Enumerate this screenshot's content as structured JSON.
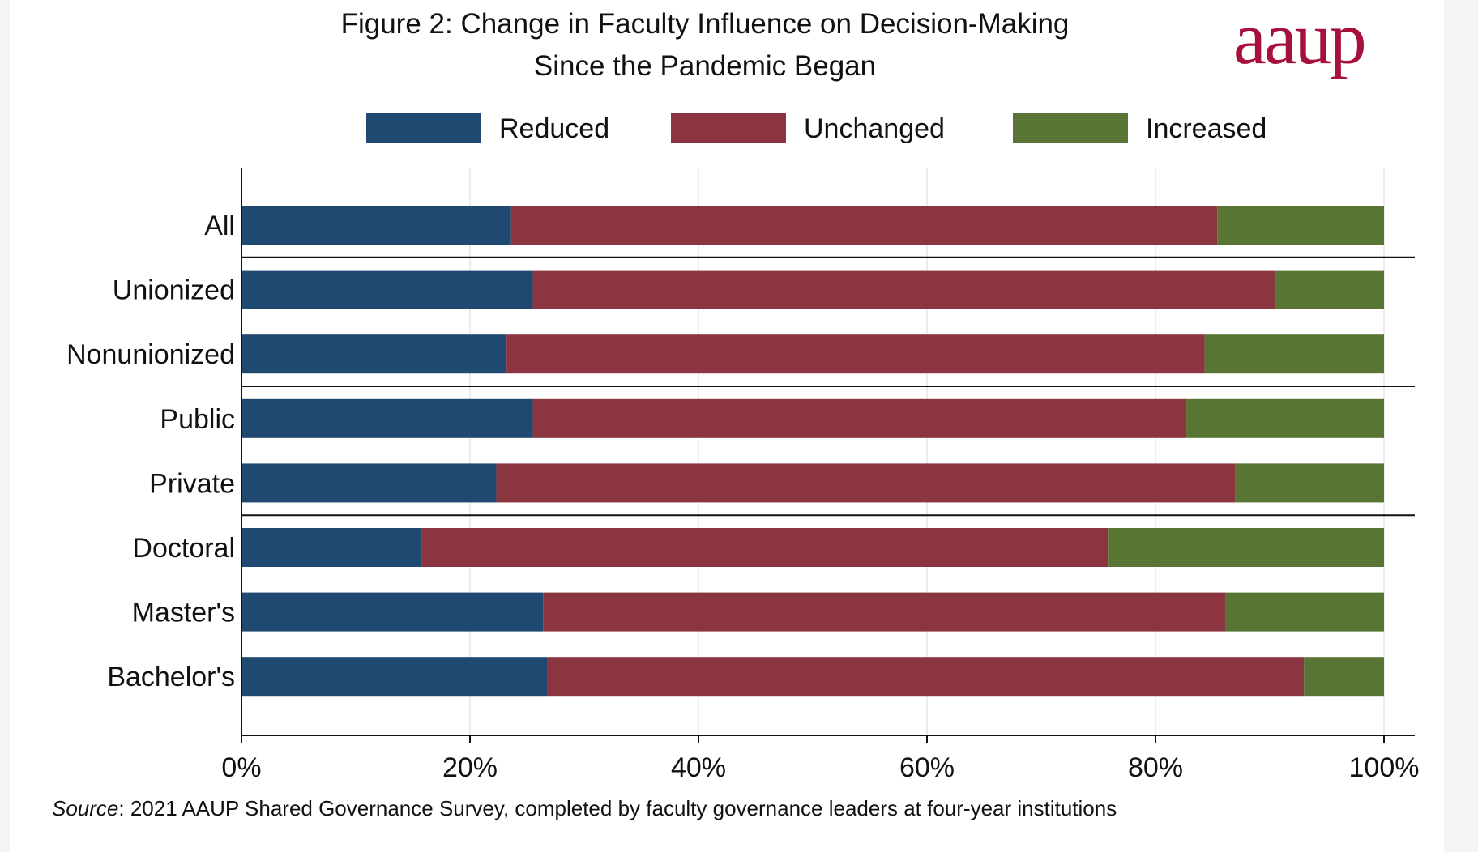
{
  "logo_text": "aaup",
  "source_note": {
    "label": "Source",
    "text": ": 2021 AAUP Shared Governance Survey, completed by faculty governance leaders at four-year institutions"
  },
  "chart_data": {
    "type": "bar",
    "orientation": "horizontal",
    "stacked": true,
    "title": "Figure 2: Change in Faculty Influence on Decision-Making",
    "subtitle": "Since the Pandemic Began",
    "categories": [
      "All",
      "Unionized",
      "Nonunionized",
      "Public",
      "Private",
      "Doctoral",
      "Master's",
      "Bachelor's"
    ],
    "series": [
      {
        "name": "Reduced",
        "color": "#1f4970",
        "values": [
          23.6,
          25.5,
          23.2,
          25.5,
          22.3,
          15.8,
          26.4,
          26.8
        ]
      },
      {
        "name": "Unchanged",
        "color": "#8b3540",
        "values": [
          61.8,
          65.0,
          61.1,
          57.2,
          64.7,
          60.1,
          59.7,
          66.2
        ]
      },
      {
        "name": "Increased",
        "color": "#587533",
        "values": [
          14.6,
          9.5,
          15.7,
          17.3,
          13.0,
          24.1,
          13.9,
          7.0
        ]
      }
    ],
    "group_separators_after": [
      "All",
      "Nonunionized",
      "Private"
    ],
    "xlim": [
      0,
      100
    ],
    "xticks": [
      "0%",
      "20%",
      "40%",
      "60%",
      "80%",
      "100%"
    ],
    "xlabel": "",
    "ylabel": "",
    "grid": "vertical",
    "legend": "top"
  }
}
